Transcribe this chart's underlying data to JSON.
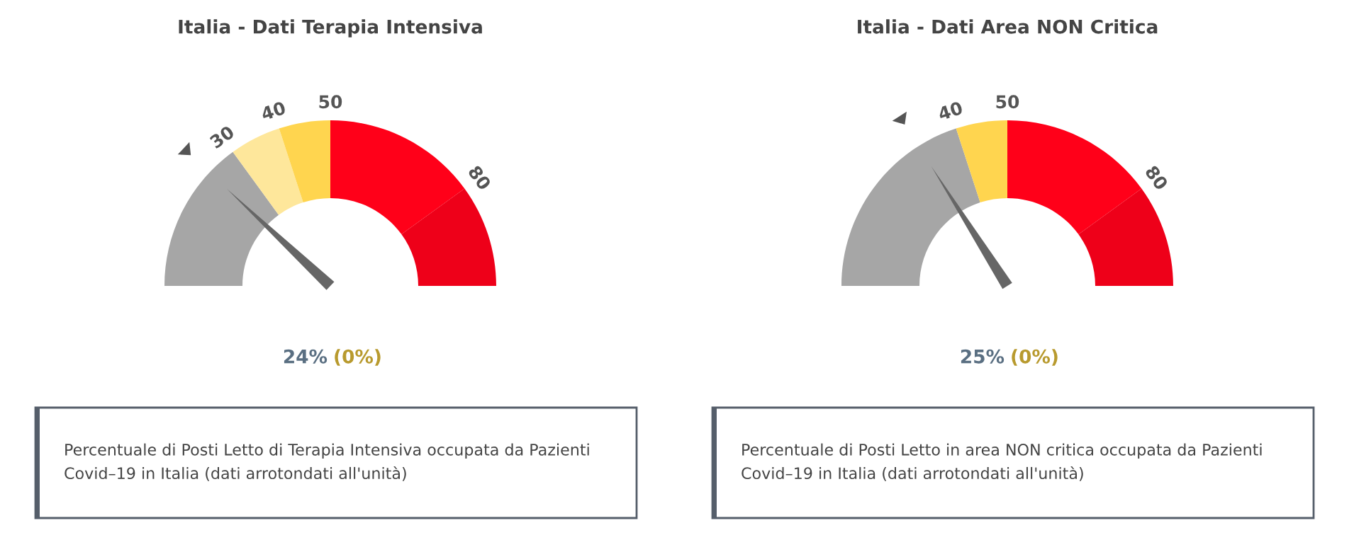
{
  "chart_data": [
    {
      "type": "donut",
      "title": "Italia - Dati Terapia Intensiva",
      "categories": [
        "30",
        "40",
        "50",
        "80",
        null
      ],
      "values": [
        30,
        10,
        10,
        30,
        20
      ],
      "colors": [
        "#a6a6a6",
        "#fee79b",
        "#ffd54f",
        "#ff0019",
        "#ee0019"
      ],
      "needle": "30",
      "annotations": [
        "24%",
        "(0%)",
        "Percentuale di Posti Letto di Terapia Intensiva occupata da Pazienti\nCovid–19 in Italia (dati arrotondati all'unità)"
      ]
    },
    {
      "type": "donut",
      "title": "Italia - Dati Area NON Critica",
      "categories": [
        "40",
        "50",
        "80",
        null
      ],
      "values": [
        40,
        10,
        30,
        20
      ],
      "colors": [
        "#a6a6a6",
        "#ffd54f",
        "#ff0019",
        "#ee0019"
      ],
      "needle": "40",
      "annotations": [
        "25%",
        "(0%)",
        "Percentuale di Posti Letto in area NON critica occupata da Pazienti\nCovid–19 in Italia (dati arrotondati all'unità)"
      ]
    }
  ]
}
